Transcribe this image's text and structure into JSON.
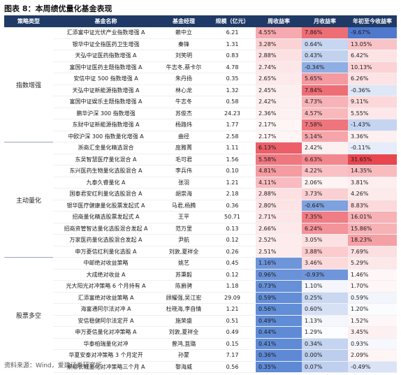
{
  "title": "图表 8：本周绩优量化基金表现",
  "headers": [
    "策略类型",
    "基金名称",
    "基金经理",
    "规模（亿元）",
    "周收益率",
    "月收益率",
    "年初至今收益率"
  ],
  "groups": [
    {
      "strategy": "指数增强",
      "rows": [
        {
          "name": "汇添富中证光伏产业指数增强 A",
          "manager": "赖中立",
          "scale": "6.21",
          "week": "4.55%",
          "month": "7.86%",
          "ytd": "-9.67%",
          "wc": "#f6a9ae",
          "mc": "#ee6e76",
          "yc": "#4f79cd"
        },
        {
          "name": "银华中证全指医药卫生增强",
          "manager": "秦锋",
          "scale": "1.31",
          "week": "3.28%",
          "month": "0.64%",
          "ytd": "13.05%",
          "wc": "#fbd3d5",
          "mc": "#c7d6f1",
          "yc": "#f9c4c7"
        },
        {
          "name": "天弘中证医药指数增强 A",
          "manager": "刘笑明",
          "scale": "0.83",
          "week": "2.88%",
          "month": "0.43%",
          "ytd": "6.42%",
          "wc": "#fde1e2",
          "mc": "#c1d2ef",
          "yc": "#fde3e4"
        },
        {
          "name": "富国中证医药主题指数增强 A",
          "manager": "牛志冬,蔡卡尔",
          "scale": "4.78",
          "week": "2.74%",
          "month": "-0.34%",
          "ytd": "10.13%",
          "wc": "#fde6e7",
          "mc": "#8faee4",
          "yc": "#fbd3d5"
        },
        {
          "name": "安信中证 500 指数增强 A",
          "manager": "朱丹扬",
          "scale": "0.35",
          "week": "2.65%",
          "month": "5.65%",
          "ytd": "6.26%",
          "wc": "#feeaea",
          "mc": "#f49aa0",
          "yc": "#fde3e4"
        },
        {
          "name": "天弘中证新能源指数增强 A",
          "manager": "林心龙",
          "scale": "1.32",
          "week": "2.45%",
          "month": "7.84%",
          "ytd": "-0.36%",
          "wc": "#feefef",
          "mc": "#ee6e76",
          "yc": "#dfe7f7"
        },
        {
          "name": "富国中证娱乐主题指数增强 A",
          "manager": "牛志冬",
          "scale": "0.58",
          "week": "2.42%",
          "month": "4.73%",
          "ytd": "9.11%",
          "wc": "#fef0f0",
          "mc": "#f7b3b7",
          "yc": "#fcd8da"
        },
        {
          "name": "鹏华沪深 300 指数增强",
          "manager": "苏俊杰",
          "scale": "24.23",
          "week": "2.36%",
          "month": "4.57%",
          "ytd": "5.55%",
          "wc": "#fef1f1",
          "mc": "#f8b9bc",
          "yc": "#fde7e8"
        },
        {
          "name": "东财中证新能源指数增强 A",
          "manager": "杨路炜",
          "scale": "1.77",
          "week": "2.17%",
          "month": "7.58%",
          "ytd": "-1.43%",
          "wc": "#fff5f5",
          "mc": "#ef757c",
          "yc": "#c5d5f0"
        },
        {
          "name": "中欧沪深 300 指数量化增强 A",
          "manager": "曲径",
          "scale": "2.58",
          "week": "2.17%",
          "month": "5.14%",
          "ytd": "3.36%",
          "wc": "#fff5f5",
          "mc": "#f6a6ab",
          "yc": "#fef0f0"
        }
      ]
    },
    {
      "strategy": "主动量化",
      "rows": [
        {
          "name": "浙商汇金量化精选混合",
          "manager": "庞雅菁",
          "scale": "1.11",
          "week": "6.13%",
          "month": "2.42%",
          "ytd": "-0.11%",
          "wc": "#ec5f68",
          "mc": "#fdf0f0",
          "yc": "#e6ecf9"
        },
        {
          "name": "东吴智慧医疗量化混合 A",
          "manager": "毛可君",
          "scale": "1.56",
          "week": "5.58%",
          "month": "6.63%",
          "ytd": "31.65%",
          "wc": "#ef7780",
          "mc": "#f2888e",
          "yc": "#e8464f"
        },
        {
          "name": "东兴医药生物量化选股混合 A",
          "manager": "李兵伟",
          "scale": "0.10",
          "week": "4.81%",
          "month": "4.22%",
          "ytd": "14.35%",
          "wc": "#f49ca1",
          "mc": "#f9c1c4",
          "yc": "#f8bcbf"
        },
        {
          "name": "九泰久睿量化 A",
          "manager": "张羽",
          "scale": "1.21",
          "week": "4.11%",
          "month": "2.06%",
          "ytd": "3.81%",
          "wc": "#f8bbbf",
          "mc": "#fef4f4",
          "yc": "#feeeee"
        },
        {
          "name": "国泰君安红利量化选股混合 A",
          "manager": "胡崇海",
          "scale": "2.18",
          "week": "2.88%",
          "month": "3.73%",
          "ytd": "4.26%",
          "wc": "#fde1e2",
          "mc": "#fbd0d2",
          "yc": "#fdeaeb"
        },
        {
          "name": "银华医疗健康量化股票发起式 A",
          "manager": "马君,杨腾",
          "scale": "0.36",
          "week": "2.80%",
          "month": "-0.64%",
          "ytd": "8.83%",
          "wc": "#fde3e4",
          "mc": "#7ea2df",
          "yc": "#fcd9db"
        },
        {
          "name": "招商量化精选股票发起式 A",
          "manager": "王平",
          "scale": "50.71",
          "week": "2.71%",
          "month": "7.35%",
          "ytd": "16.01%",
          "wc": "#fde6e7",
          "mc": "#f07c84",
          "yc": "#f7b2b6"
        },
        {
          "name": "招商资管智达量化选股混合发起 A",
          "manager": "范万里",
          "scale": "0.13",
          "week": "2.66%",
          "month": "6.24%",
          "ytd": "15.86%",
          "wc": "#fde9ea",
          "mc": "#f3939a",
          "yc": "#f7b2b6"
        },
        {
          "name": "万家医药量化选股混合发起 A",
          "manager": "尹航",
          "scale": "0.12",
          "week": "2.52%",
          "month": "3.05%",
          "ytd": "18.23%",
          "wc": "#feeced",
          "mc": "#fde0e1",
          "yc": "#f5a0a5"
        },
        {
          "name": "申万菱信红利量化选股 A",
          "manager": "刘敦,夏祥全",
          "scale": "0.26",
          "week": "2.51%",
          "month": "3.88%",
          "ytd": "7.69%",
          "wc": "#feeced",
          "mc": "#fbcbce",
          "yc": "#fcdfe0"
        }
      ]
    },
    {
      "strategy": "股票多空",
      "rows": [
        {
          "name": "中邮绝对收益策略",
          "manager": "姚艺",
          "scale": "0.45",
          "week": "1.16%",
          "month": "3.46%",
          "ytd": "5.29%",
          "wc": "#6e95da",
          "mc": "#fcdadc",
          "yc": "#fde8e9"
        },
        {
          "name": "大成绝对收益 A",
          "manager": "苏秉毅",
          "scale": "0.12",
          "week": "0.96%",
          "month": "-0.93%",
          "ytd": "1.46%",
          "wc": "#6a92d9",
          "mc": "#6f96da",
          "yc": "#fff7f7"
        },
        {
          "name": "光大阳光对冲策略 6 个月持有 A",
          "manager": "陈爵骋",
          "scale": "1.18",
          "week": "0.73%",
          "month": "1.10%",
          "ytd": "1.70%",
          "wc": "#6690d8",
          "mc": "#f4f6fc",
          "yc": "#fff6f6"
        },
        {
          "name": "汇添富绝对收益策略 A",
          "manager": "顾耀强,吴江宏",
          "scale": "29.09",
          "week": "0.59%",
          "month": "0.25%",
          "ytd": "0.59%",
          "wc": "#638ed7",
          "mc": "#c9d7f1",
          "yc": "#f2f5fc"
        },
        {
          "name": "海富通阿尔法对冲 A",
          "manager": "杜晓海,李自情",
          "scale": "1.21",
          "week": "0.56%",
          "month": "0.60%",
          "ytd": "1.20%",
          "wc": "#628dd7",
          "mc": "#d6e1f5",
          "yc": "#fbfcfe"
        },
        {
          "name": "安信稳健阿尔法定开 A",
          "manager": "施荣盛",
          "scale": "0.51",
          "week": "0.49%",
          "month": "1.13%",
          "ytd": "1.52%",
          "wc": "#618cd6",
          "mc": "#f5f7fc",
          "yc": "#fff7f7"
        },
        {
          "name": "申万菱信量化对冲策略 A",
          "manager": "刘敦,夏祥全",
          "scale": "0.49",
          "week": "0.44%",
          "month": "1.29%",
          "ytd": "3.45%",
          "wc": "#5f8bd6",
          "mc": "#fcfdff",
          "yc": "#fef0f0"
        },
        {
          "name": "华泰柏瑞量化对冲",
          "manager": "曾鸿,苴璐",
          "scale": "0.15",
          "week": "0.41%",
          "month": "0.34%",
          "ytd": "0.93%",
          "wc": "#5f8ad6",
          "mc": "#c5d4f0",
          "yc": "#f6f8fd"
        },
        {
          "name": "华夏安泰对冲策略 3 个月定开",
          "manager": "孙蒙",
          "scale": "7.17",
          "week": "0.36%",
          "month": "0.00%",
          "ytd": "2.09%",
          "wc": "#5e89d5",
          "mc": "#bccdee",
          "yc": "#fff5f5"
        },
        {
          "name": "景顺长城量化对冲策略三个月 A",
          "manager": "黎海威",
          "scale": "0.56",
          "week": "0.35%",
          "month": "0.07%",
          "ytd": "-0.49%",
          "wc": "#5e89d5",
          "mc": "#bfcfee",
          "yc": "#dbe4f6"
        }
      ]
    }
  ],
  "footer": "资料来源：Wind，爱建证券研究所"
}
